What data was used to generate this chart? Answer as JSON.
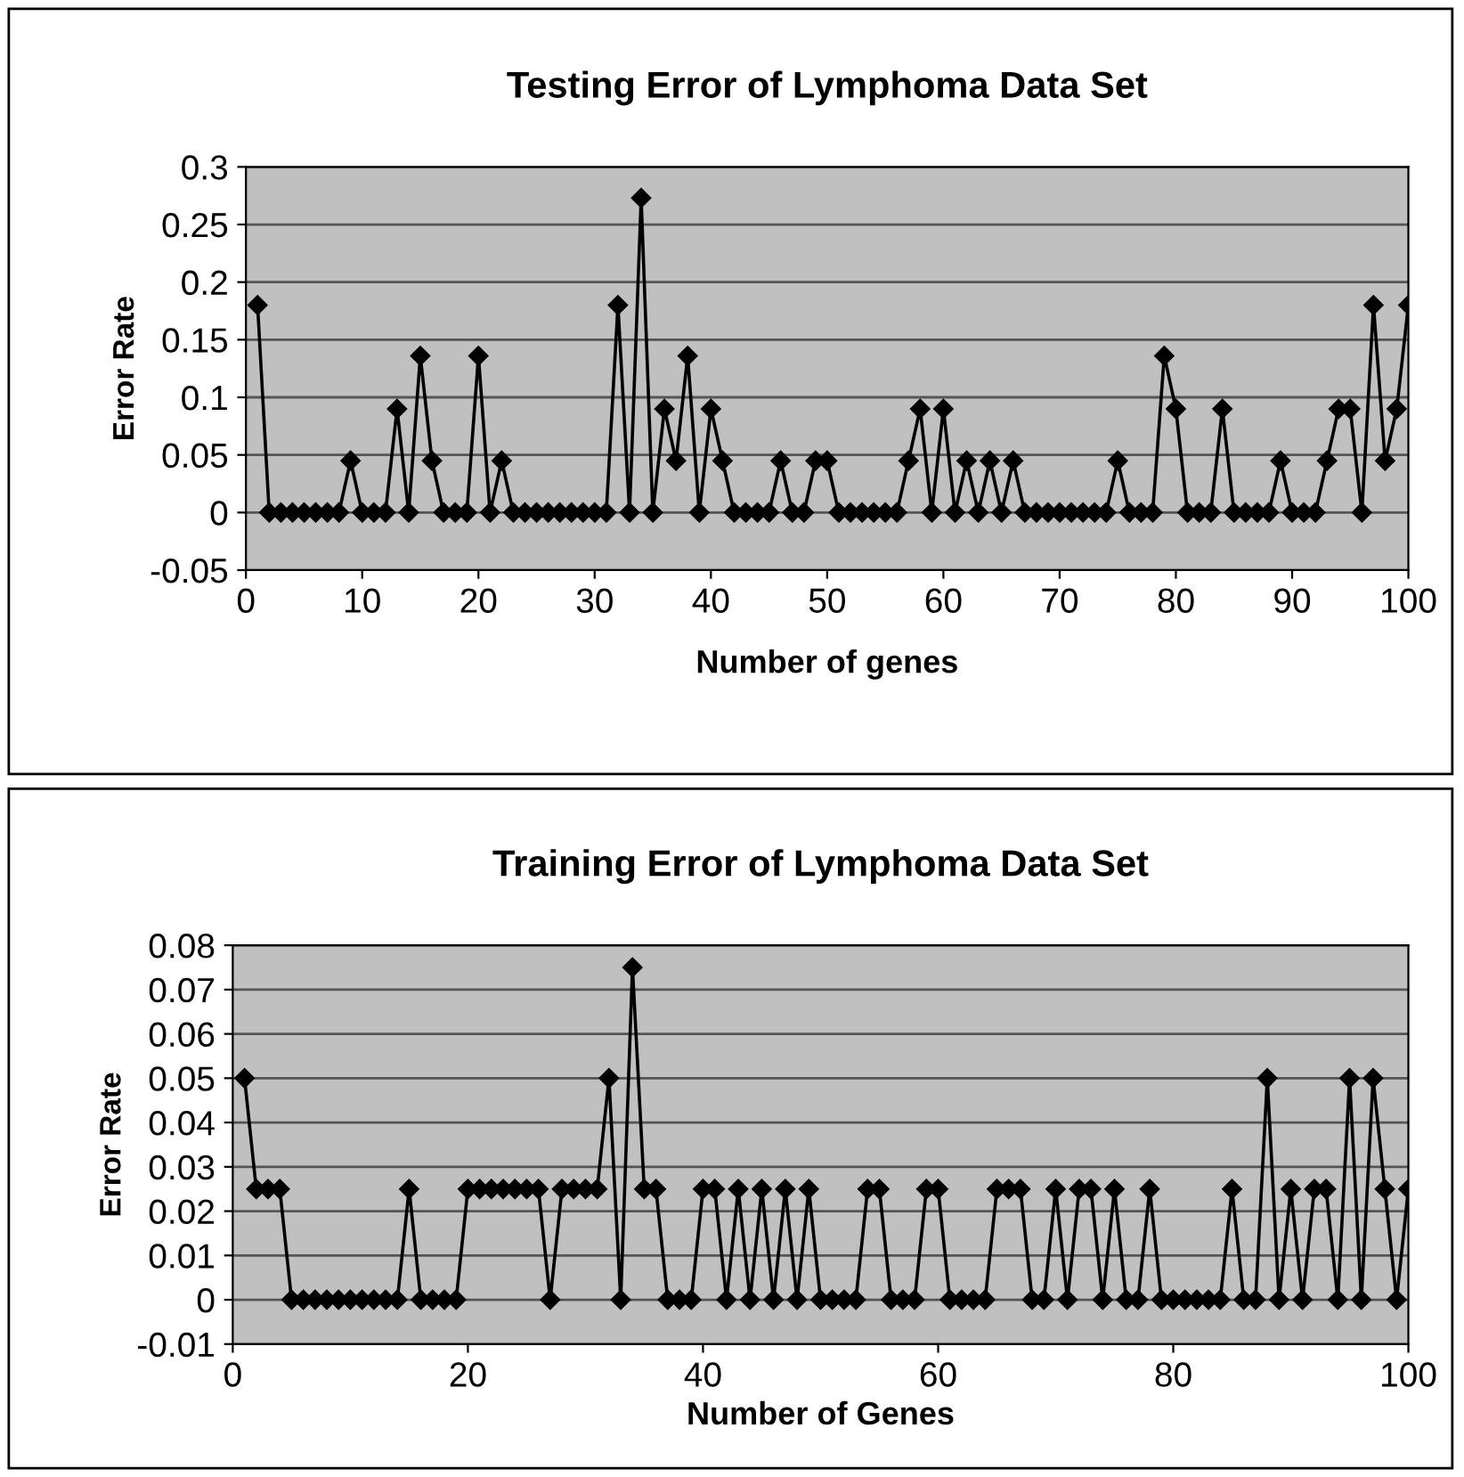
{
  "chart_data": [
    {
      "type": "line",
      "title": "Testing Error of Lymphoma Data Set",
      "xlabel": "Number of genes",
      "ylabel": "Error Rate",
      "grid": "y",
      "marker": "diamond",
      "line_style": "solid",
      "xlim": [
        0,
        100
      ],
      "xticks": [
        0,
        10,
        20,
        30,
        40,
        50,
        60,
        70,
        80,
        90,
        100
      ],
      "ylim": [
        -0.05,
        0.3
      ],
      "yticks": [
        -0.05,
        0,
        0.05,
        0.1,
        0.15,
        0.2,
        0.25,
        0.3
      ],
      "x": [
        1,
        2,
        3,
        4,
        5,
        6,
        7,
        8,
        9,
        10,
        11,
        12,
        13,
        14,
        15,
        16,
        17,
        18,
        19,
        20,
        21,
        22,
        23,
        24,
        25,
        26,
        27,
        28,
        29,
        30,
        31,
        32,
        33,
        34,
        35,
        36,
        37,
        38,
        39,
        40,
        41,
        42,
        43,
        44,
        45,
        46,
        47,
        48,
        49,
        50,
        51,
        52,
        53,
        54,
        55,
        56,
        57,
        58,
        59,
        60,
        61,
        62,
        63,
        64,
        65,
        66,
        67,
        68,
        69,
        70,
        71,
        72,
        73,
        74,
        75,
        76,
        77,
        78,
        79,
        80,
        81,
        82,
        83,
        84,
        85,
        86,
        87,
        88,
        89,
        90,
        91,
        92,
        93,
        94,
        95,
        96,
        97,
        98,
        99,
        100
      ],
      "series": [
        {
          "color": "#000000",
          "values": [
            0.18,
            0,
            0,
            0,
            0,
            0,
            0,
            0,
            0.045,
            0,
            0,
            0,
            0.09,
            0,
            0.136,
            0.045,
            0,
            0,
            0,
            0.136,
            0,
            0.045,
            0,
            0,
            0,
            0,
            0,
            0,
            0,
            0,
            0,
            0.18,
            0,
            0.273,
            0,
            0.09,
            0.045,
            0.136,
            0,
            0.09,
            0.045,
            0,
            0,
            0,
            0,
            0.045,
            0,
            0,
            0.045,
            0.045,
            0,
            0,
            0,
            0,
            0,
            0,
            0.045,
            0.09,
            0,
            0.09,
            0,
            0.045,
            0,
            0.045,
            0,
            0.045,
            0,
            0,
            0,
            0,
            0,
            0,
            0,
            0,
            0.045,
            0,
            0,
            0,
            0.136,
            0.09,
            0,
            0,
            0,
            0.09,
            0,
            0,
            0,
            0,
            0.045,
            0,
            0,
            0,
            0.045,
            0.09,
            0.09,
            0,
            0.18,
            0.045,
            0.09,
            0.18
          ]
        }
      ]
    },
    {
      "type": "line",
      "title": "Training Error of Lymphoma Data Set",
      "xlabel": "Number of Genes",
      "ylabel": "Error Rate",
      "grid": "y",
      "marker": "diamond",
      "line_style": "solid",
      "xlim": [
        0,
        100
      ],
      "xticks": [
        0,
        20,
        40,
        60,
        80,
        100
      ],
      "ylim": [
        -0.01,
        0.08
      ],
      "yticks": [
        -0.01,
        0,
        0.01,
        0.02,
        0.03,
        0.04,
        0.05,
        0.06,
        0.07,
        0.08
      ],
      "x": [
        1,
        2,
        3,
        4,
        5,
        6,
        7,
        8,
        9,
        10,
        11,
        12,
        13,
        14,
        15,
        16,
        17,
        18,
        19,
        20,
        21,
        22,
        23,
        24,
        25,
        26,
        27,
        28,
        29,
        30,
        31,
        32,
        33,
        34,
        35,
        36,
        37,
        38,
        39,
        40,
        41,
        42,
        43,
        44,
        45,
        46,
        47,
        48,
        49,
        50,
        51,
        52,
        53,
        54,
        55,
        56,
        57,
        58,
        59,
        60,
        61,
        62,
        63,
        64,
        65,
        66,
        67,
        68,
        69,
        70,
        71,
        72,
        73,
        74,
        75,
        76,
        77,
        78,
        79,
        80,
        81,
        82,
        83,
        84,
        85,
        86,
        87,
        88,
        89,
        90,
        91,
        92,
        93,
        94,
        95,
        96,
        97,
        98,
        99,
        100
      ],
      "series": [
        {
          "color": "#000000",
          "values": [
            0.05,
            0.025,
            0.025,
            0.025,
            0,
            0,
            0,
            0,
            0,
            0,
            0,
            0,
            0,
            0,
            0.025,
            0,
            0,
            0,
            0,
            0.025,
            0.025,
            0.025,
            0.025,
            0.025,
            0.025,
            0.025,
            0,
            0.025,
            0.025,
            0.025,
            0.025,
            0.05,
            0,
            0.075,
            0.025,
            0.025,
            0,
            0,
            0,
            0.025,
            0.025,
            0,
            0.025,
            0,
            0.025,
            0,
            0.025,
            0,
            0.025,
            0,
            0,
            0,
            0,
            0.025,
            0.025,
            0,
            0,
            0,
            0.025,
            0.025,
            0,
            0,
            0,
            0,
            0.025,
            0.025,
            0.025,
            0,
            0,
            0.025,
            0,
            0.025,
            0.025,
            0,
            0.025,
            0,
            0,
            0.025,
            0,
            0,
            0,
            0,
            0,
            0,
            0.025,
            0,
            0,
            0.05,
            0,
            0.025,
            0,
            0.025,
            0.025,
            0,
            0.05,
            0,
            0.05,
            0.025,
            0,
            0.025
          ]
        }
      ]
    }
  ]
}
